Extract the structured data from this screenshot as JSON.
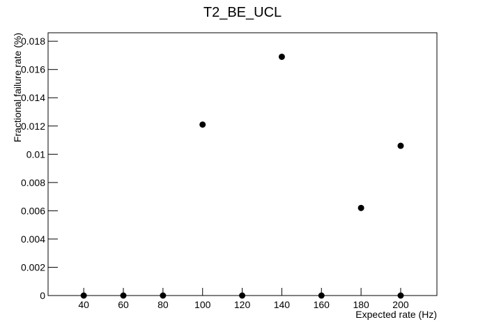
{
  "chart_data": {
    "type": "scatter",
    "title": "T2_BE_UCL",
    "x_label": "Expected rate (Hz)",
    "y_label": "Fractional failure rate (%)",
    "x": [
      40,
      60,
      80,
      100,
      120,
      140,
      160,
      180,
      200,
      200
    ],
    "values": [
      0,
      0,
      0,
      0.0121,
      0,
      0.0169,
      0,
      0.0062,
      0.0106,
      0
    ],
    "color": "#000000",
    "xlim": [
      22,
      218.3
    ],
    "xticks": [
      40,
      60,
      80,
      100,
      120,
      140,
      160,
      180,
      200
    ],
    "ylim": [
      0,
      0.0186
    ],
    "yticks": [
      0,
      0.002,
      0.004,
      0.006,
      0.008,
      0.01,
      0.012,
      0.014,
      0.016,
      0.018
    ],
    "grid": false
  }
}
